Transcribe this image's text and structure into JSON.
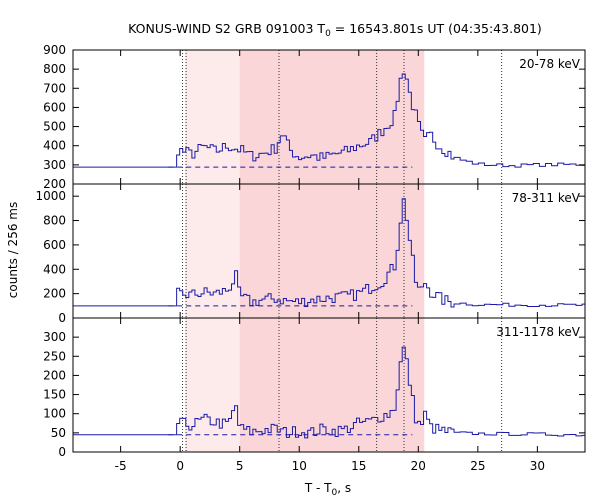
{
  "chart_data": {
    "type": "line",
    "title_parts": {
      "pre": "KONUS-WIND S2 GRB 091003 T",
      "sub": "0",
      "post": " = 16543.801s UT (04:35:43.801)"
    },
    "xlabel_parts": {
      "pre": "T - T",
      "sub": "0",
      "post": ", s"
    },
    "ylabel": "counts / 256 ms",
    "xlim": [
      -9,
      34
    ],
    "x_ticks": [
      -5,
      0,
      5,
      10,
      15,
      20,
      25,
      30
    ],
    "highlight_regions": [
      {
        "x0": 0.4,
        "x1": 5.0,
        "color": "#fdeaea"
      },
      {
        "x0": 5.0,
        "x1": 20.5,
        "color": "#fbd6d9"
      }
    ],
    "vertical_markers": [
      0.2,
      0.5,
      8.3,
      16.5,
      18.8,
      27.0
    ],
    "panels": [
      {
        "label": "20-78 keV",
        "ylim": [
          200,
          900
        ],
        "y_ticks": [
          200,
          300,
          400,
          500,
          600,
          700,
          800,
          900
        ],
        "background": 288,
        "profile": [
          [
            -9,
            288
          ],
          [
            -0.3,
            290
          ],
          [
            -0.2,
            380
          ],
          [
            1,
            355
          ],
          [
            2,
            395
          ],
          [
            3,
            370
          ],
          [
            4,
            400
          ],
          [
            5,
            380
          ],
          [
            6,
            345
          ],
          [
            7,
            360
          ],
          [
            8,
            385
          ],
          [
            8.6,
            470
          ],
          [
            9.2,
            380
          ],
          [
            10,
            340
          ],
          [
            11,
            350
          ],
          [
            12,
            335
          ],
          [
            13,
            355
          ],
          [
            14,
            370
          ],
          [
            15,
            400
          ],
          [
            16,
            420
          ],
          [
            17,
            480
          ],
          [
            17.6,
            520
          ],
          [
            18,
            550
          ],
          [
            18.4,
            700
          ],
          [
            18.7,
            810
          ],
          [
            19,
            760
          ],
          [
            19.4,
            640
          ],
          [
            19.8,
            560
          ],
          [
            20.2,
            470
          ],
          [
            20.6,
            420
          ],
          [
            21,
            460
          ],
          [
            21.5,
            420
          ],
          [
            22,
            390
          ],
          [
            22.5,
            370
          ],
          [
            23,
            340
          ],
          [
            24,
            320
          ],
          [
            25,
            305
          ],
          [
            26,
            300
          ],
          [
            28,
            296
          ],
          [
            30,
            300
          ],
          [
            34,
            302
          ]
        ]
      },
      {
        "label": "78-311 keV",
        "ylim": [
          0,
          1100
        ],
        "y_ticks": [
          0,
          200,
          400,
          600,
          800,
          1000
        ],
        "background": 100,
        "profile": [
          [
            -9,
            100
          ],
          [
            -0.3,
            100
          ],
          [
            -0.2,
            200
          ],
          [
            1,
            190
          ],
          [
            2,
            210
          ],
          [
            3,
            200
          ],
          [
            4,
            230
          ],
          [
            4.7,
            340
          ],
          [
            5,
            180
          ],
          [
            6,
            130
          ],
          [
            7,
            150
          ],
          [
            8,
            160
          ],
          [
            9,
            140
          ],
          [
            10,
            130
          ],
          [
            11,
            150
          ],
          [
            12,
            160
          ],
          [
            13,
            170
          ],
          [
            14,
            175
          ],
          [
            15,
            200
          ],
          [
            16,
            250
          ],
          [
            17,
            300
          ],
          [
            17.6,
            380
          ],
          [
            18,
            420
          ],
          [
            18.4,
            680
          ],
          [
            18.7,
            1000
          ],
          [
            19,
            850
          ],
          [
            19.4,
            560
          ],
          [
            19.8,
            300
          ],
          [
            20.2,
            200
          ],
          [
            20.6,
            300
          ],
          [
            21,
            220
          ],
          [
            22,
            150
          ],
          [
            23,
            125
          ],
          [
            25,
            110
          ],
          [
            28,
            108
          ],
          [
            34,
            105
          ]
        ]
      },
      {
        "label": "311-1178 keV",
        "ylim": [
          0,
          350
        ],
        "y_ticks": [
          0,
          50,
          100,
          150,
          200,
          250,
          300
        ],
        "background": 45,
        "profile": [
          [
            -9,
            45
          ],
          [
            -0.3,
            45
          ],
          [
            -0.2,
            75
          ],
          [
            1,
            70
          ],
          [
            2,
            85
          ],
          [
            3,
            78
          ],
          [
            4,
            70
          ],
          [
            4.7,
            120
          ],
          [
            5,
            62
          ],
          [
            6,
            52
          ],
          [
            7,
            58
          ],
          [
            8,
            60
          ],
          [
            9,
            50
          ],
          [
            10,
            55
          ],
          [
            11,
            50
          ],
          [
            12,
            60
          ],
          [
            13,
            55
          ],
          [
            14,
            60
          ],
          [
            15,
            75
          ],
          [
            16,
            80
          ],
          [
            17,
            95
          ],
          [
            17.6,
            100
          ],
          [
            18,
            115
          ],
          [
            18.4,
            200
          ],
          [
            18.7,
            280
          ],
          [
            19,
            240
          ],
          [
            19.4,
            160
          ],
          [
            19.8,
            90
          ],
          [
            20.2,
            65
          ],
          [
            20.6,
            100
          ],
          [
            21,
            65
          ],
          [
            22,
            55
          ],
          [
            23,
            50
          ],
          [
            25,
            48
          ],
          [
            28,
            47
          ],
          [
            34,
            45
          ]
        ]
      }
    ]
  }
}
